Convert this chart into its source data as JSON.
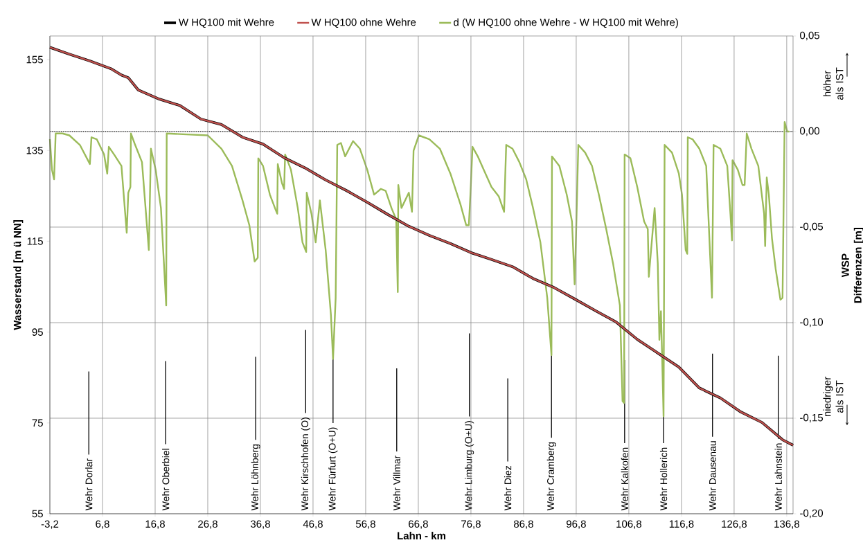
{
  "chart_data": {
    "type": "line",
    "xlabel": "Lahn - km",
    "ylabel": "Wasserstand [m ü NN]",
    "y2label": "WSP Differenzen [m]",
    "xlim": [
      -3.2,
      138.0
    ],
    "ylim": [
      55,
      160.2
    ],
    "y2lim": [
      -0.2,
      0.05
    ],
    "xticks": [
      {
        "value": -3.2,
        "label": "-3,2"
      },
      {
        "value": 6.8,
        "label": "6,8"
      },
      {
        "value": 16.8,
        "label": "16,8"
      },
      {
        "value": 26.8,
        "label": "26,8"
      },
      {
        "value": 36.8,
        "label": "36,8"
      },
      {
        "value": 46.8,
        "label": "46,8"
      },
      {
        "value": 56.8,
        "label": "56,8"
      },
      {
        "value": 66.8,
        "label": "66,8"
      },
      {
        "value": 76.8,
        "label": "76,8"
      },
      {
        "value": 86.8,
        "label": "86,8"
      },
      {
        "value": 96.8,
        "label": "96,8"
      },
      {
        "value": 106.8,
        "label": "106,8"
      },
      {
        "value": 116.8,
        "label": "116,8"
      },
      {
        "value": 126.8,
        "label": "126,8"
      },
      {
        "value": 136.8,
        "label": "136,8"
      }
    ],
    "yticks": [
      55,
      75,
      95,
      115,
      135,
      155
    ],
    "y2ticks": [
      {
        "value": -0.2,
        "label": "-0,20"
      },
      {
        "value": -0.15,
        "label": "-0,15"
      },
      {
        "value": -0.1,
        "label": "-0,10"
      },
      {
        "value": -0.05,
        "label": "-0,05"
      },
      {
        "value": 0,
        "label": "0,00"
      },
      {
        "value": 0.05,
        "label": "0,05"
      }
    ],
    "grid": true,
    "legend": "top",
    "line_style": "solid",
    "ref_lines": [
      {
        "axis": "y2",
        "value": 0,
        "color": "#000000",
        "line_style": "dotted"
      },
      {
        "axis": "x",
        "value": 4.2,
        "label": "Wehr Dorlar",
        "color": "#000000"
      },
      {
        "axis": "x",
        "value": 18.8,
        "label": "Wehr Oberbiel",
        "color": "#000000"
      },
      {
        "axis": "x",
        "value": 35.9,
        "label": "Wehr Löhnberg",
        "color": "#000000"
      },
      {
        "axis": "x",
        "value": 45.4,
        "label": "Wehr Kirschhofen (O)",
        "color": "#000000"
      },
      {
        "axis": "x",
        "value": 50.6,
        "label": "Wehr Fürfurt (O+U)",
        "color": "#000000"
      },
      {
        "axis": "x",
        "value": 62.7,
        "label": "Wehr Villmar",
        "color": "#000000"
      },
      {
        "axis": "x",
        "value": 76.5,
        "label": "Wehr Limburg (O+U)",
        "color": "#000000"
      },
      {
        "axis": "x",
        "value": 83.8,
        "label": "Wehr Diez",
        "color": "#000000"
      },
      {
        "axis": "x",
        "value": 92.1,
        "label": "Wehr Cramberg",
        "color": "#000000"
      },
      {
        "axis": "x",
        "value": 106.0,
        "label": "Wehr Kalkofen",
        "color": "#000000"
      },
      {
        "axis": "x",
        "value": 113.4,
        "label": "Wehr Hollerich",
        "color": "#000000"
      },
      {
        "axis": "x",
        "value": 122.7,
        "label": "Wehr Dausenau",
        "color": "#000000"
      },
      {
        "axis": "x",
        "value": 135.2,
        "label": "Wehr Lahnstein",
        "color": "#000000"
      }
    ],
    "series": [
      {
        "name": "W HQ100 mit Wehre",
        "color": "#000000",
        "x": [
          -3.2,
          0.5,
          4.4,
          8.4,
          10.4,
          11.7,
          13.6,
          17.6,
          21.5,
          25.5,
          29.4,
          33.4,
          37.3,
          41.3,
          45.2,
          49.2,
          53.1,
          57.1,
          61.0,
          65.0,
          68.9,
          72.9,
          76.8,
          80.7,
          84.7,
          88.6,
          92.6,
          96.5,
          100.5,
          104.4,
          108.4,
          112.3,
          116.3,
          120.2,
          124.2,
          128.1,
          132.1,
          136.0,
          138.0
        ],
        "values": [
          157.7,
          156.2,
          154.7,
          153.0,
          151.6,
          151.0,
          148.3,
          146.3,
          144.9,
          141.9,
          140.7,
          137.9,
          136.4,
          133.4,
          131.2,
          128.5,
          126.2,
          123.6,
          120.9,
          118.3,
          116.3,
          114.5,
          112.5,
          111.0,
          109.4,
          106.8,
          104.8,
          102.3,
          99.7,
          97.2,
          93.4,
          90.4,
          87.3,
          82.7,
          80.5,
          77.4,
          75.1,
          71.3,
          70.1
        ]
      },
      {
        "name": "W HQ100 ohne Wehre",
        "color": "#c0504d",
        "x": [
          -3.2,
          0.5,
          4.4,
          8.4,
          10.4,
          11.7,
          13.6,
          17.6,
          21.5,
          25.5,
          29.4,
          33.4,
          37.3,
          41.3,
          45.2,
          49.2,
          53.1,
          57.1,
          61.0,
          65.0,
          68.9,
          72.9,
          76.8,
          80.7,
          84.7,
          88.6,
          92.6,
          96.5,
          100.5,
          104.4,
          108.4,
          112.3,
          116.3,
          120.2,
          124.2,
          128.1,
          132.1,
          136.0,
          138.0
        ],
        "values": [
          157.7,
          156.2,
          154.7,
          153.0,
          151.6,
          151.0,
          148.3,
          146.3,
          144.9,
          141.9,
          140.7,
          137.9,
          136.4,
          133.4,
          131.2,
          128.5,
          126.2,
          123.6,
          120.9,
          118.3,
          116.3,
          114.5,
          112.5,
          111.0,
          109.4,
          106.8,
          104.8,
          102.3,
          99.7,
          97.2,
          93.4,
          90.4,
          87.3,
          82.7,
          80.5,
          77.4,
          75.1,
          71.3,
          70.1
        ]
      },
      {
        "name": "d (W HQ100 ohne Wehre - W HQ100 mit Wehre)",
        "color": "#9bbb59",
        "axis": "y2",
        "x": [
          -3.2,
          -2.8,
          -2.4,
          -2.1,
          -0.8,
          0.5,
          2.5,
          4.4,
          4.7,
          5.7,
          7.1,
          7.7,
          8.0,
          9.0,
          10.4,
          11.4,
          11.7,
          12.1,
          12.2,
          13.0,
          14.3,
          15.6,
          16.0,
          16.9,
          17.9,
          18.9,
          19.0,
          26.8,
          29.4,
          31.4,
          33.4,
          34.7,
          35.7,
          36.3,
          36.4,
          37.3,
          38.6,
          39.7,
          40.0,
          40.1,
          40.9,
          41.3,
          41.5,
          42.6,
          43.9,
          44.8,
          45.5,
          45.6,
          46.5,
          47.3,
          48.1,
          49.2,
          50.2,
          50.6,
          51.1,
          51.4,
          52.1,
          52.9,
          54.4,
          55.7,
          57.1,
          58.4,
          59.7,
          60.6,
          61.7,
          62.6,
          62.9,
          63.0,
          63.6,
          65.0,
          65.6,
          65.9,
          66.9,
          68.9,
          70.9,
          72.9,
          74.8,
          75.9,
          76.4,
          76.7,
          77.1,
          78.1,
          79.4,
          80.7,
          82.1,
          83.1,
          83.5,
          84.7,
          86.0,
          87.3,
          88.6,
          90.0,
          91.3,
          92.1,
          92.2,
          93.6,
          95.0,
          96.0,
          96.5,
          96.8,
          97.2,
          98.5,
          99.8,
          101.1,
          102.5,
          103.8,
          105.1,
          105.6,
          105.9,
          106.0,
          107.1,
          108.4,
          109.7,
          110.4,
          110.6,
          111.7,
          112.3,
          112.6,
          112.9,
          113.1,
          113.4,
          113.6,
          115.0,
          116.3,
          116.9,
          117.6,
          117.9,
          118.0,
          118.9,
          120.2,
          121.5,
          122.6,
          122.9,
          124.2,
          125.5,
          126.1,
          126.4,
          126.5,
          127.5,
          128.4,
          128.8,
          129.2,
          130.1,
          131.4,
          132.5,
          132.7,
          133.0,
          133.4,
          134.0,
          134.7,
          135.6,
          136.0,
          136.4,
          136.9,
          137.3
        ],
        "values": [
          -0.004,
          -0.02,
          -0.025,
          -0.001,
          -0.001,
          -0.002,
          -0.007,
          -0.017,
          -0.003,
          -0.004,
          -0.012,
          -0.022,
          -0.008,
          -0.012,
          -0.018,
          -0.053,
          -0.032,
          -0.029,
          -0.001,
          -0.007,
          -0.016,
          -0.062,
          -0.009,
          -0.02,
          -0.04,
          -0.091,
          -0.001,
          -0.002,
          -0.009,
          -0.018,
          -0.036,
          -0.049,
          -0.068,
          -0.066,
          -0.014,
          -0.018,
          -0.033,
          -0.041,
          -0.043,
          -0.017,
          -0.027,
          -0.03,
          -0.012,
          -0.02,
          -0.04,
          -0.058,
          -0.063,
          -0.032,
          -0.043,
          -0.058,
          -0.036,
          -0.062,
          -0.096,
          -0.119,
          -0.087,
          -0.007,
          -0.006,
          -0.013,
          -0.005,
          -0.009,
          -0.02,
          -0.033,
          -0.03,
          -0.031,
          -0.04,
          -0.046,
          -0.084,
          -0.028,
          -0.04,
          -0.032,
          -0.042,
          -0.01,
          -0.002,
          -0.004,
          -0.009,
          -0.022,
          -0.038,
          -0.049,
          -0.049,
          -0.033,
          -0.008,
          -0.013,
          -0.021,
          -0.029,
          -0.034,
          -0.042,
          -0.007,
          -0.009,
          -0.016,
          -0.025,
          -0.04,
          -0.058,
          -0.087,
          -0.117,
          -0.013,
          -0.018,
          -0.033,
          -0.047,
          -0.08,
          -0.051,
          -0.007,
          -0.011,
          -0.018,
          -0.033,
          -0.051,
          -0.069,
          -0.091,
          -0.141,
          -0.142,
          -0.012,
          -0.014,
          -0.029,
          -0.047,
          -0.051,
          -0.076,
          -0.04,
          -0.069,
          -0.109,
          -0.094,
          -0.115,
          -0.149,
          -0.007,
          -0.011,
          -0.022,
          -0.033,
          -0.062,
          -0.064,
          -0.003,
          -0.004,
          -0.009,
          -0.018,
          -0.087,
          -0.007,
          -0.009,
          -0.018,
          -0.043,
          -0.057,
          -0.015,
          -0.02,
          -0.028,
          -0.028,
          -0.001,
          -0.009,
          -0.018,
          -0.043,
          -0.06,
          -0.024,
          -0.033,
          -0.056,
          -0.072,
          -0.088,
          -0.087,
          0.005,
          0.0,
          0.0
        ]
      }
    ],
    "annotations": [
      "höher als IST",
      "niedriger als IST"
    ]
  }
}
